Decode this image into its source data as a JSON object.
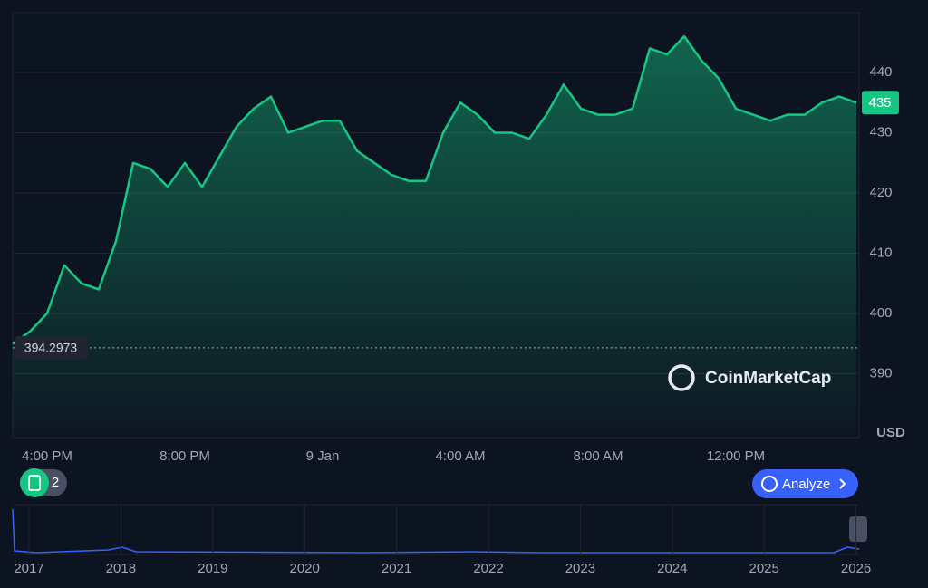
{
  "chart_data": {
    "type": "line",
    "categories": [
      null,
      null,
      "4:00 PM",
      null,
      null,
      null,
      null,
      null,
      null,
      null,
      "8:00 PM",
      null,
      null,
      null,
      null,
      null,
      null,
      null,
      "9 Jan",
      null,
      null,
      null,
      null,
      null,
      null,
      null,
      "4:00 AM",
      null,
      null,
      null,
      null,
      null,
      null,
      null,
      "8:00 AM",
      null,
      null,
      null,
      null,
      null,
      null,
      null,
      "12:00 PM",
      null,
      null,
      null,
      null,
      null,
      null,
      null
    ],
    "values": [
      395,
      397,
      400,
      408,
      405,
      404,
      412,
      425,
      424,
      421,
      425,
      421,
      426,
      431,
      434,
      436,
      430,
      431,
      432,
      432,
      427,
      425,
      423,
      422,
      422,
      430,
      435,
      433,
      430,
      430,
      429,
      433,
      438,
      434,
      433,
      433,
      434,
      444,
      443,
      446,
      442,
      439,
      434,
      433,
      432,
      433,
      433,
      435,
      436,
      435
    ],
    "color": "#16c784",
    "ylim": [
      380,
      450
    ],
    "yticks": [
      390,
      400,
      410,
      420,
      430,
      440
    ],
    "grid": true,
    "y_unit": "USD",
    "reference_value": 394.2973,
    "current_price": 435,
    "brand": "CoinMarketCap",
    "button": "Analyze",
    "badge_count": 2,
    "navigator_years": [
      2017,
      2018,
      2019,
      2020,
      2021,
      2022,
      2023,
      2024,
      2025,
      2026
    ]
  }
}
